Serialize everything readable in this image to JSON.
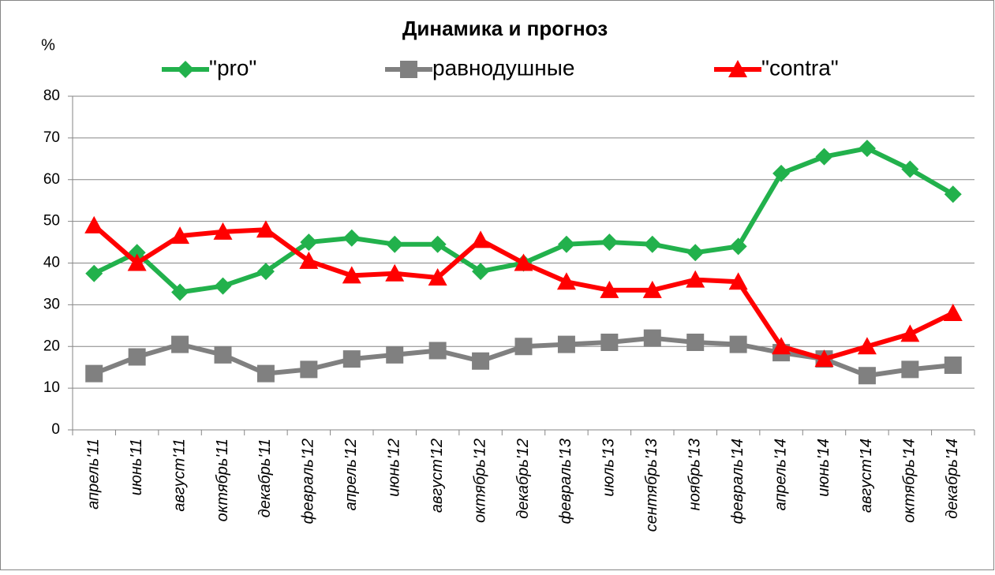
{
  "chart_data": {
    "type": "line",
    "title": "Динамика и прогноз",
    "y_label": "%",
    "categories": [
      "апрель'11",
      "июнь'11",
      "август'11",
      "октябрь'11",
      "декабрь'11",
      "февраль'12",
      "апрель'12",
      "июнь'12",
      "август'12",
      "октябрь'12",
      "декабрь'12",
      "февраль'13",
      "июль'13",
      "сентябрь'13",
      "ноябрь'13",
      "февраль'14",
      "апрель'14",
      "июнь'14",
      "август'14",
      "октябрь'14",
      "декабрь'14"
    ],
    "series": [
      {
        "name": "\"pro\"",
        "color": "#22b14c",
        "marker": "diamond",
        "values": [
          37.5,
          42.5,
          33,
          34.5,
          38,
          45,
          46,
          44.5,
          44.5,
          38,
          40,
          44.5,
          45,
          44.5,
          42.5,
          44,
          61.5,
          65.5,
          67.5,
          62.5,
          56.5
        ]
      },
      {
        "name": "равнодушные",
        "color": "#808080",
        "marker": "square",
        "values": [
          13.5,
          17.5,
          20.5,
          18,
          13.5,
          14.5,
          17,
          18,
          19,
          16.5,
          20,
          20.5,
          21,
          22,
          21,
          20.5,
          18.5,
          17,
          13,
          14.5,
          15.5
        ]
      },
      {
        "name": "\"contra\"",
        "color": "#ff0000",
        "marker": "triangle",
        "values": [
          49,
          40,
          46.5,
          47.5,
          48,
          40.5,
          37,
          37.5,
          36.5,
          45.5,
          40,
          35.5,
          33.5,
          33.5,
          36,
          35.5,
          20,
          17,
          20,
          23,
          28
        ]
      }
    ],
    "ylim": [
      0,
      80
    ],
    "yticks": [
      0,
      10,
      20,
      30,
      40,
      50,
      60,
      70,
      80
    ],
    "grid": true,
    "legend": "top"
  }
}
